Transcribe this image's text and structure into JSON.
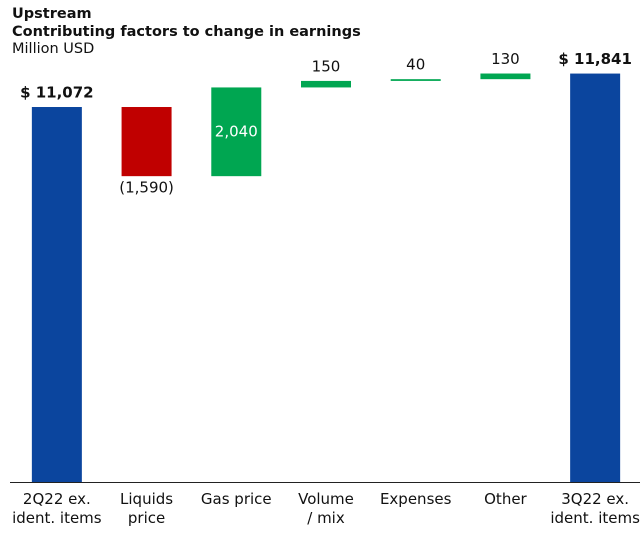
{
  "chart_data": {
    "type": "waterfall",
    "title": "Upstream",
    "subtitle": "Contributing factors to change in earnings",
    "unit_label": "Million USD",
    "categories": [
      "2Q22 ex.\nident. items",
      "Liquids\nprice",
      "Gas price",
      "Volume\n/ mix",
      "Expenses",
      "Other",
      "3Q22 ex.\nident. items"
    ],
    "values": [
      11072,
      -1590,
      2040,
      150,
      40,
      130,
      11841
    ],
    "value_labels": [
      "$ 11,072",
      "(1,590)",
      "2,040",
      "150",
      "40",
      "130",
      "$ 11,841"
    ],
    "measure": [
      "absolute",
      "relative",
      "relative",
      "relative",
      "relative",
      "relative",
      "absolute"
    ],
    "colors": [
      "#0b459e",
      "#c00000",
      "#00a651",
      "#00a651",
      "#00a651",
      "#00a651",
      "#0b459e"
    ],
    "ylim": [
      2450,
      12300
    ]
  }
}
